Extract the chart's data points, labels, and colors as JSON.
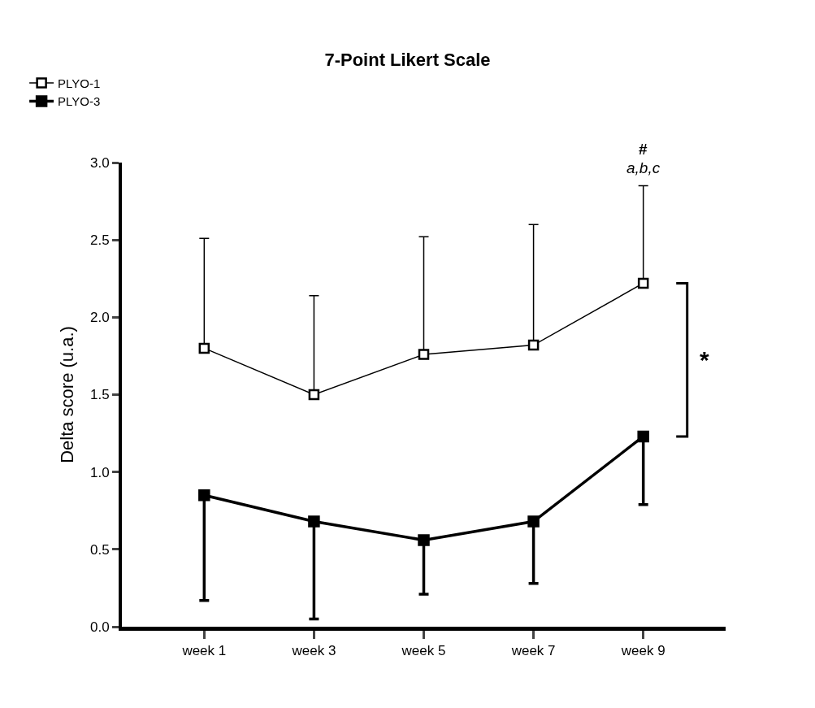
{
  "chart_data": {
    "type": "line",
    "title": "7-Point Likert Scale",
    "ylabel": "Delta score (u.a.)",
    "categories": [
      "week 1",
      "week 3",
      "week 5",
      "week 7",
      "week 9"
    ],
    "series": [
      {
        "name": "PLYO-1",
        "color": "#000000",
        "values": [
          1.8,
          1.5,
          1.76,
          1.82,
          2.22
        ],
        "errors": [
          [
            1.8,
            2.51
          ],
          [
            1.5,
            2.14
          ],
          [
            1.76,
            2.52
          ],
          [
            1.82,
            2.6
          ],
          [
            2.22,
            2.85
          ]
        ]
      },
      {
        "name": "PLYO-3",
        "color": "#000000",
        "values": [
          0.85,
          0.68,
          0.56,
          0.68,
          1.23
        ],
        "errors": [
          [
            0.17,
            0.85
          ],
          [
            0.05,
            0.68
          ],
          [
            0.21,
            0.56
          ],
          [
            0.28,
            0.68
          ],
          [
            0.79,
            1.23
          ]
        ]
      }
    ],
    "annotations": [
      {
        "text": "#",
        "x": "week 9",
        "y": 2.85
      },
      {
        "text": "a,b,c",
        "x": "week 9",
        "y": 2.85
      },
      "*"
    ],
    "ylim": [
      0,
      3.0
    ],
    "yticks": [
      {
        "value": 0,
        "label": "0.0"
      },
      0.5,
      {
        "value": 1,
        "label": "1.0"
      },
      1.5,
      {
        "value": 2,
        "label": "2.0"
      },
      2.5,
      {
        "value": 3,
        "label": "3.0"
      }
    ],
    "legend": "top left",
    "marker": "square",
    "line_style": "solid"
  }
}
